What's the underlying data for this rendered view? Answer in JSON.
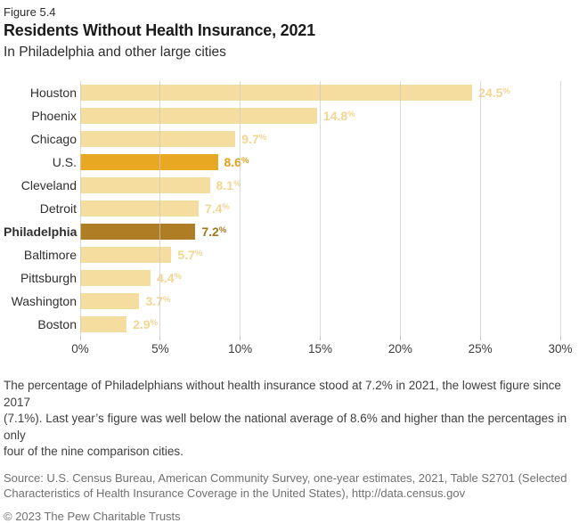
{
  "header": {
    "figure_label": "Figure 5.4",
    "title": "Residents Without Health Insurance, 2021",
    "subtitle": "In Philadelphia and other large cities"
  },
  "chart_data": {
    "type": "bar",
    "orientation": "horizontal",
    "title": "Residents Without Health Insurance, 2021",
    "subtitle": "In Philadelphia and other large cities",
    "categories": [
      "Houston",
      "Phoenix",
      "Chicago",
      "U.S.",
      "Cleveland",
      "Detroit",
      "Philadelphia",
      "Baltimore",
      "Pittsburgh",
      "Washington",
      "Boston"
    ],
    "values": [
      24.5,
      14.8,
      9.7,
      8.6,
      8.1,
      7.4,
      7.2,
      5.7,
      4.4,
      3.7,
      2.9
    ],
    "value_suffix": "%",
    "xlim": [
      0,
      30
    ],
    "x_ticks": [
      "0%",
      "5%",
      "10%",
      "15%",
      "20%",
      "25%",
      "30%"
    ],
    "grid": true,
    "legend": "none",
    "emphasis": {
      "U.S.": "us",
      "Philadelphia": "phila"
    }
  },
  "notes": {
    "note_lines": [
      "The percentage of Philadelphians without health insurance stood at 7.2% in 2021, the lowest figure since 2017",
      "(7.1%). Last year’s figure was well below the national average of 8.6% and higher than the percentages in only",
      "four of the nine comparison cities."
    ],
    "source_lines": [
      "Source: U.S. Census Bureau, American Community Survey, one-year estimates, 2021, Table S2701 (Selected",
      "Characteristics of Health Insurance Coverage in the United States), http://data.census.gov"
    ],
    "copyright": "© 2023 The Pew Charitable Trusts"
  },
  "colors": {
    "bar_default": "#F5DC9F",
    "bar_us": "#E8A821",
    "bar_philadelphia": "#AF7D23",
    "value_default": "#F3D592",
    "value_us": "#E0A01C",
    "value_philadelphia": "#A3761E",
    "gridline": "#CBCBCB",
    "axis_text": "#3C3C3C",
    "category_text": "#2F2F2F"
  }
}
